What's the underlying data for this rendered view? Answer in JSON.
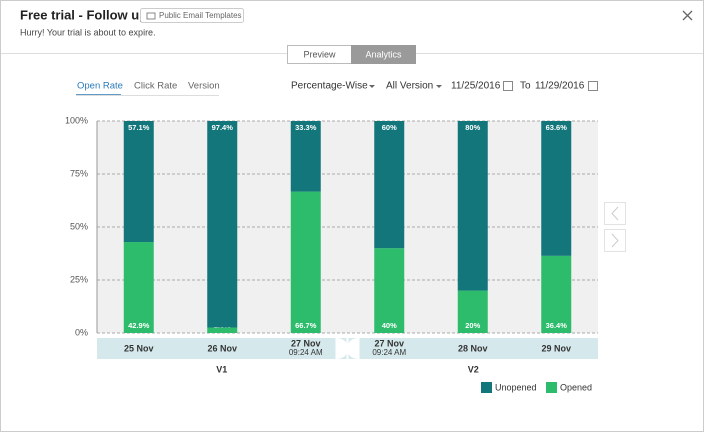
{
  "header": {
    "title": "Free trial - Follow up",
    "template_button": "Public Email Templates",
    "subtitle": "Hurry! Your trial is about to expire."
  },
  "tabs": [
    "Preview",
    "Analytics"
  ],
  "subtabs": [
    "Open Rate",
    "Click Rate",
    "Version"
  ],
  "filters": {
    "mode": "Percentage-Wise",
    "version": "All Version",
    "from": "11/25/2016",
    "to_label": "To",
    "to": "11/29/2016"
  },
  "chart_data": {
    "type": "bar",
    "stacked": true,
    "categories": [
      "25 Nov",
      "26 Nov",
      "27 Nov",
      "27 Nov",
      "28 Nov",
      "29 Nov"
    ],
    "category_times": [
      null,
      null,
      "09:24 AM",
      "09:24 AM",
      null,
      null
    ],
    "group_labels": [
      "V1",
      "V2"
    ],
    "series": [
      {
        "name": "Unopened",
        "color": "#13767a",
        "values": [
          57.1,
          97.4,
          33.3,
          60,
          80,
          63.6
        ],
        "value_labels": [
          "57.1%",
          "97.4%",
          "33.3%",
          "60%",
          "80%",
          "63.6%"
        ]
      },
      {
        "name": "Opened",
        "color": "#2dbc6c",
        "values": [
          42.9,
          2.6,
          66.7,
          40,
          20,
          36.4
        ],
        "value_labels": [
          "42.9%",
          "2.6%",
          "66.7%",
          "40%",
          "20%",
          "36.4%"
        ]
      }
    ],
    "ylim": [
      0,
      100
    ],
    "yticks": [
      {
        "value": 0,
        "label": "0%"
      },
      {
        "value": 25,
        "label": "25%"
      },
      {
        "value": 50,
        "label": "50%"
      },
      {
        "value": 75,
        "label": "75%"
      },
      {
        "value": 100,
        "label": "100%"
      }
    ],
    "grid": true
  }
}
